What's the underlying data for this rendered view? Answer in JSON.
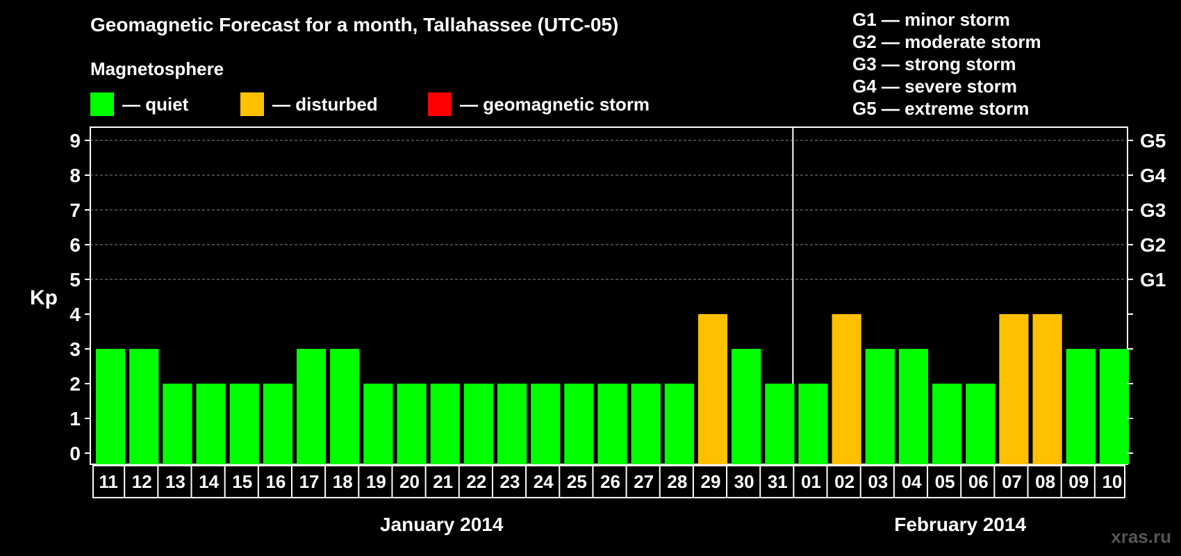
{
  "chart_data": {
    "type": "bar",
    "title": "Geomagnetic Forecast for a month, Tallahassee (UTC-05)",
    "subtitle": "Magnetosphere",
    "ylabel": "Kp",
    "ylim": [
      0,
      9
    ],
    "yticks": [
      "0",
      "1",
      "2",
      "3",
      "4",
      "5",
      "6",
      "7",
      "8",
      "9"
    ],
    "right_ticks": [
      {
        "kp": 5,
        "label": "G1"
      },
      {
        "kp": 6,
        "label": "G2"
      },
      {
        "kp": 7,
        "label": "G3"
      },
      {
        "kp": 8,
        "label": "G4"
      },
      {
        "kp": 9,
        "label": "G5"
      }
    ],
    "grid": "dashed horizontal lines at Kp 5-9",
    "legend": [
      {
        "label": "— quiet",
        "color": "#00ff00"
      },
      {
        "label": "— disturbed",
        "color": "#ffc000"
      },
      {
        "label": "— geomagnetic storm",
        "color": "#ff0000"
      }
    ],
    "storm_levels": [
      "G1 — minor storm",
      "G2 — moderate storm",
      "G3 — strong storm",
      "G4 — severe storm",
      "G5 — extreme storm"
    ],
    "months": [
      {
        "label": "January 2014",
        "days": 21
      },
      {
        "label": "February 2014",
        "days": 10
      }
    ],
    "categories": [
      "11",
      "12",
      "13",
      "14",
      "15",
      "16",
      "17",
      "18",
      "19",
      "20",
      "21",
      "22",
      "23",
      "24",
      "25",
      "26",
      "27",
      "28",
      "29",
      "30",
      "31",
      "01",
      "02",
      "03",
      "04",
      "05",
      "06",
      "07",
      "08",
      "09",
      "10"
    ],
    "values": [
      3,
      3,
      2,
      2,
      2,
      2,
      3,
      3,
      2,
      2,
      2,
      2,
      2,
      2,
      2,
      2,
      2,
      2,
      4,
      3,
      2,
      2,
      4,
      3,
      3,
      2,
      2,
      4,
      4,
      3,
      3
    ],
    "status": [
      "quiet",
      "quiet",
      "quiet",
      "quiet",
      "quiet",
      "quiet",
      "quiet",
      "quiet",
      "quiet",
      "quiet",
      "quiet",
      "quiet",
      "quiet",
      "quiet",
      "quiet",
      "quiet",
      "quiet",
      "quiet",
      "disturbed",
      "quiet",
      "quiet",
      "quiet",
      "disturbed",
      "quiet",
      "quiet",
      "quiet",
      "quiet",
      "disturbed",
      "disturbed",
      "quiet",
      "quiet"
    ],
    "colors": {
      "quiet": "#00ff00",
      "disturbed": "#ffc000",
      "storm": "#ff0000"
    }
  },
  "watermark": "xras.ru"
}
